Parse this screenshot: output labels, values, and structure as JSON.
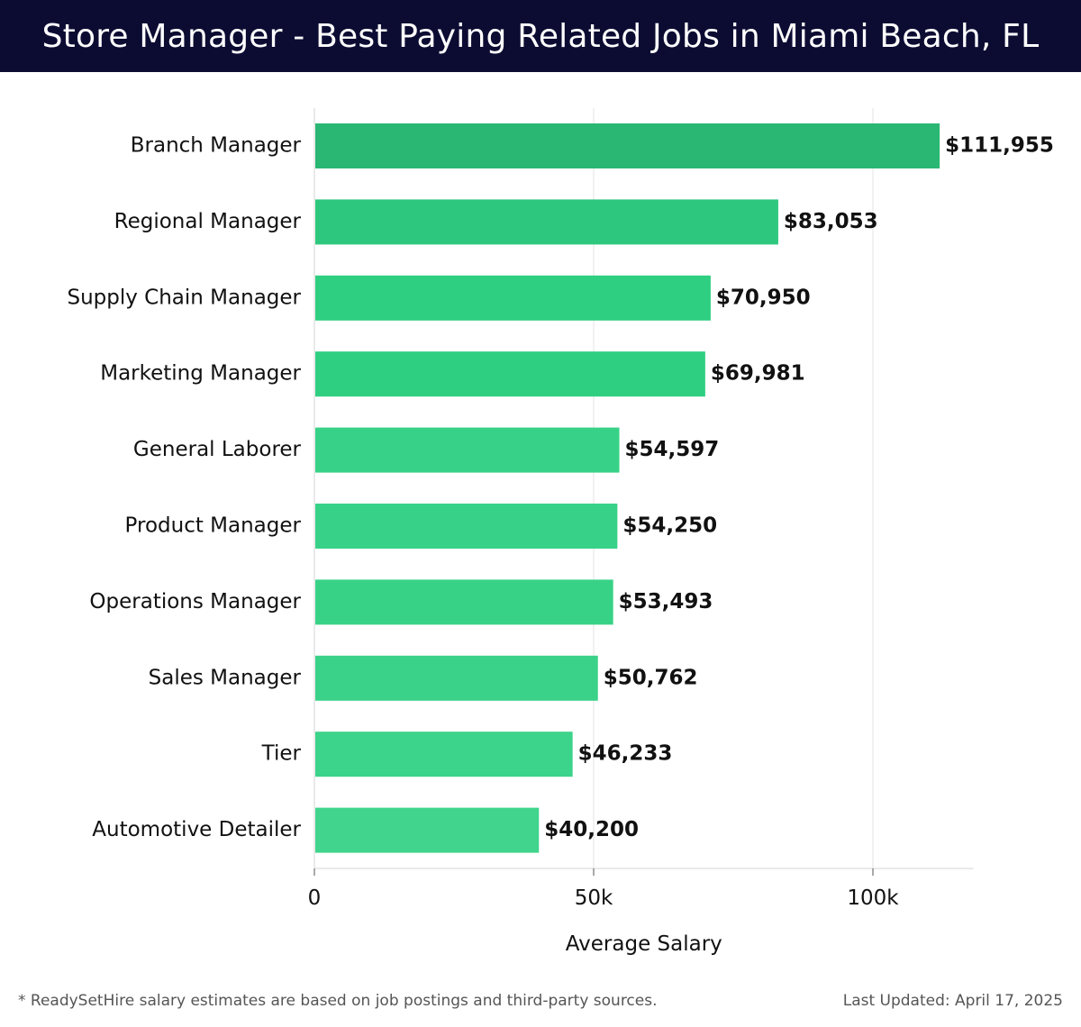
{
  "header": {
    "title": "Store Manager - Best Paying Related Jobs in Miami Beach, FL"
  },
  "chart_data": {
    "type": "bar",
    "orientation": "horizontal",
    "title": "Store Manager - Best Paying Related Jobs in Miami Beach, FL",
    "xlabel": "Average Salary",
    "ylabel": "",
    "xlim": [
      0,
      118000
    ],
    "xticks": [
      0,
      50000,
      100000
    ],
    "xtick_labels": [
      "0",
      "50k",
      "100k"
    ],
    "grid": "vertical",
    "bar_color": "#2bbf78",
    "categories": [
      "Branch Manager",
      "Regional Manager",
      "Supply Chain Manager",
      "Marketing Manager",
      "General Laborer",
      "Product Manager",
      "Operations Manager",
      "Sales Manager",
      "Tier",
      "Automotive Detailer"
    ],
    "values": [
      111955,
      83053,
      70950,
      69981,
      54597,
      54250,
      53493,
      50762,
      46233,
      40200
    ],
    "value_labels": [
      "$111,955",
      "$83,053",
      "$70,950",
      "$69,981",
      "$54,597",
      "$54,250",
      "$53,493",
      "$50,762",
      "$46,233",
      "$40,200"
    ]
  },
  "footer": {
    "note": "* ReadySetHire salary estimates are based on job postings and third-party sources.",
    "updated": "Last Updated: April 17, 2025"
  }
}
